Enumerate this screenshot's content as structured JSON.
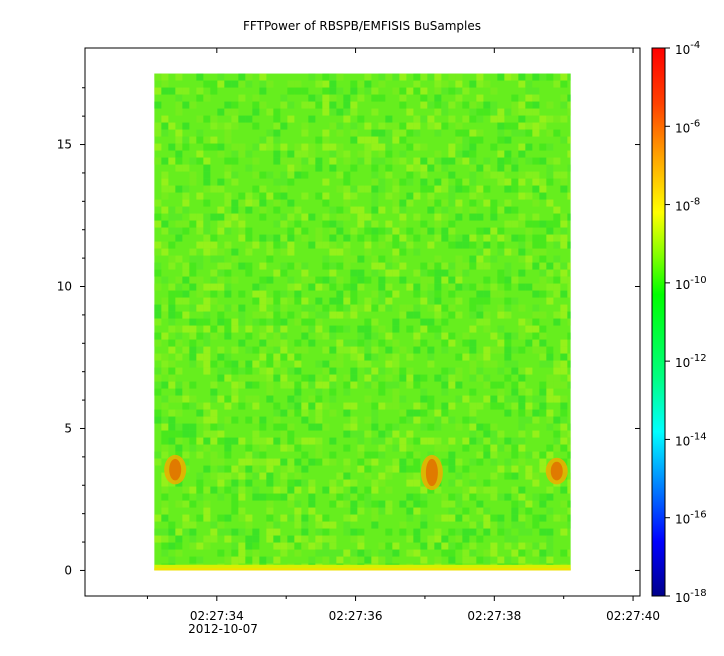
{
  "chart_data": {
    "type": "heatmap",
    "title": "FFTPower of RBSPB/EMFISIS  BuSamples",
    "xlabel": "",
    "ylabel": "",
    "x_ticks": [
      "02:27:34",
      "02:27:36",
      "02:27:38",
      "02:27:40"
    ],
    "x_tick_values": [
      34,
      36,
      38,
      40
    ],
    "x_date_label": "2012-10-07",
    "xlim": [
      32.1,
      40.1
    ],
    "data_x_range": [
      33.1,
      39.1
    ],
    "y_ticks": [
      "0",
      "5",
      "10",
      "15"
    ],
    "y_tick_values": [
      0,
      5,
      10,
      15
    ],
    "ylim": [
      -0.9,
      18.4
    ],
    "data_y_range": [
      0,
      17.5
    ],
    "colorbar": {
      "scale": "log",
      "range_exponents": [
        -18,
        -4
      ],
      "tick_exponents": [
        -4,
        -6,
        -8,
        -10,
        -12,
        -14,
        -16,
        -18
      ],
      "tick_base": "10",
      "colors": [
        "#00008b",
        "#0000ff",
        "#0080ff",
        "#00ffff",
        "#00ff80",
        "#00ff00",
        "#80ff00",
        "#ffff00",
        "#ffa500",
        "#ff4000",
        "#ff0000"
      ]
    },
    "background_level_exponent": -10,
    "features": [
      {
        "x": 33.4,
        "y": [
          3.1,
          4.0
        ],
        "level_exponent": -7
      },
      {
        "x": 37.1,
        "y": [
          2.9,
          4.0
        ],
        "level_exponent": -6.5
      },
      {
        "x": 38.9,
        "y": [
          3.1,
          3.9
        ],
        "level_exponent": -7
      }
    ]
  }
}
